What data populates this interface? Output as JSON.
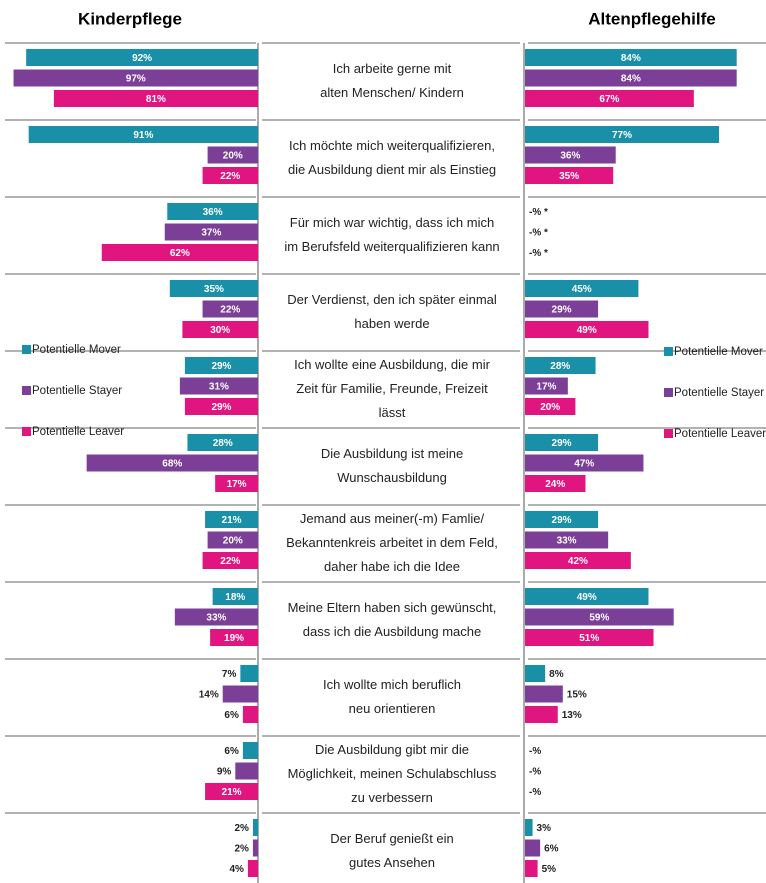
{
  "chart_data": {
    "type": "bar",
    "categories": [
      [
        "Ich arbeite gerne mit",
        "alten Menschen/ Kindern"
      ],
      [
        "Ich möchte mich weiterqualifizieren,",
        "die Ausbildung dient mir als Einstieg"
      ],
      [
        "Für mich war wichtig, dass ich mich",
        "im Berufsfeld weiterqualifizieren kann"
      ],
      [
        "Der Verdienst, den ich später einmal",
        "haben werde"
      ],
      [
        "Ich wollte eine Ausbildung, die mir",
        "Zeit für Familie, Freunde, Freizeit",
        "lässt"
      ],
      [
        "Die Ausbildung ist meine",
        "Wunschausbildung"
      ],
      [
        "Jemand aus meiner(-m) Famlie/",
        "Bekanntenkreis arbeitet in dem Feld,",
        "daher habe ich die Idee"
      ],
      [
        "Meine Eltern haben sich gewünscht,",
        "dass ich die Ausbildung mache"
      ],
      [
        "Ich wollte mich beruflich",
        "neu orientieren"
      ],
      [
        "Die Ausbildung gibt mir die",
        "Möglichkeit, meinen Schulabschluss",
        "zu verbessern"
      ],
      [
        "Der Beruf genießt ein",
        "gutes Ansehen"
      ]
    ],
    "left": {
      "title": "Kinderpflege",
      "series": [
        {
          "name": "Potentielle Mover",
          "color": "#1a8fa8",
          "values": [
            92,
            91,
            36,
            35,
            29,
            28,
            21,
            18,
            7,
            6,
            2
          ],
          "value_labels": [
            "92%",
            "91%",
            "36%",
            "35%",
            "29%",
            "28%",
            "21%",
            "18%",
            "7%",
            "6%",
            "2%"
          ]
        },
        {
          "name": "Potentielle Stayer",
          "color": "#7b3f98",
          "values": [
            97,
            20,
            37,
            22,
            31,
            68,
            20,
            33,
            14,
            9,
            2
          ],
          "value_labels": [
            "97%",
            "20%",
            "37%",
            "22%",
            "31%",
            "68%",
            "20%",
            "33%",
            "14%",
            "9%",
            "2%"
          ]
        },
        {
          "name": "Potentielle Leaver",
          "color": "#e0157f",
          "values": [
            81,
            22,
            62,
            30,
            29,
            17,
            22,
            19,
            6,
            21,
            4
          ],
          "value_labels": [
            "81%",
            "22%",
            "62%",
            "30%",
            "29%",
            "17%",
            "22%",
            "19%",
            "6%",
            "21%",
            "4%"
          ]
        }
      ]
    },
    "right": {
      "title": "Altenpflegehilfe",
      "series": [
        {
          "name": "Potentielle Mover",
          "color": "#1a8fa8",
          "values": [
            84,
            77,
            null,
            45,
            28,
            29,
            29,
            49,
            8,
            null,
            3
          ],
          "value_labels": [
            "84%",
            "77%",
            "-% *",
            "45%",
            "28%",
            "29%",
            "29%",
            "49%",
            "8%",
            "-%",
            "3%"
          ]
        },
        {
          "name": "Potentielle Stayer",
          "color": "#7b3f98",
          "values": [
            84,
            36,
            null,
            29,
            17,
            47,
            33,
            59,
            15,
            null,
            6
          ],
          "value_labels": [
            "84%",
            "36%",
            "-% *",
            "29%",
            "17%",
            "47%",
            "33%",
            "59%",
            "15%",
            "-%",
            "6%"
          ]
        },
        {
          "name": "Potentielle Leaver",
          "color": "#e0157f",
          "values": [
            67,
            35,
            null,
            49,
            20,
            24,
            42,
            51,
            13,
            null,
            5
          ],
          "value_labels": [
            "67%",
            "35%",
            "-% *",
            "49%",
            "20%",
            "24%",
            "42%",
            "51%",
            "13%",
            "-%",
            "5%"
          ]
        }
      ]
    }
  }
}
